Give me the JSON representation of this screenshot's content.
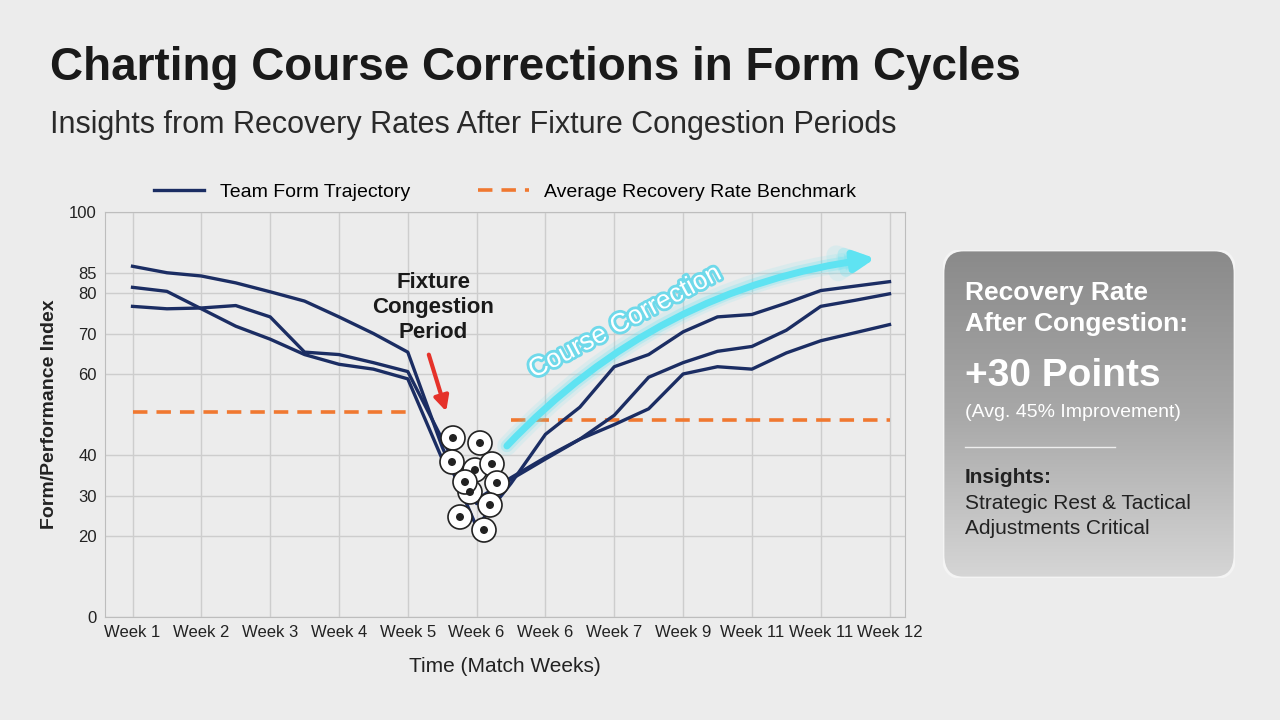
{
  "chart_data": {
    "type": "line",
    "title": "Charting Course Corrections in Form Cycles",
    "subtitle": "Insights from Recovery Rates After Fixture Congestion Periods",
    "x_label": "Time (Match Weeks)",
    "y_label": "Form/Performance Index",
    "categories": [
      "Week 1",
      null,
      "Week 2",
      null,
      "Week 3",
      null,
      "Week 4",
      null,
      "Week 5",
      null,
      "Week 6",
      null,
      "Week 6",
      null,
      "Week 7",
      null,
      "Week 9",
      null,
      "Week 11",
      null,
      "Week 11",
      null,
      "Week 12"
    ],
    "series": [
      {
        "name": "Team Form Trajectory",
        "color": "#1b2d63",
        "line_style": "solid",
        "values": [
          86.6,
          85.0,
          84.2,
          82.5,
          80.3,
          78.0,
          74.1,
          70.0,
          65.4,
          42.0,
          22.2,
          33.0,
          45.1,
          51.8,
          61.8,
          64.8,
          70.4,
          74.1,
          74.7,
          77.5,
          80.6,
          81.7,
          82.8
        ]
      },
      {
        "color": "#1b2d63",
        "line_style": "solid",
        "values": [
          81.4,
          80.4,
          76.1,
          71.8,
          68.6,
          64.8,
          62.4,
          61.2,
          58.8,
          39.0,
          29.0,
          34.4,
          39.4,
          43.9,
          49.8,
          59.2,
          62.8,
          65.6,
          66.8,
          70.8,
          76.7,
          78.2,
          79.8
        ]
      },
      {
        "color": "#1b2d63",
        "line_style": "solid",
        "values": [
          76.7,
          76.1,
          76.3,
          76.9,
          74.1,
          65.4,
          64.8,
          62.8,
          60.6,
          43.9,
          28.0,
          34.0,
          39.0,
          43.9,
          47.5,
          51.4,
          60.0,
          61.8,
          61.2,
          65.2,
          68.2,
          70.2,
          72.2
        ]
      },
      {
        "name": "Average Recovery Rate Benchmark",
        "color": "#f07830",
        "line_style": "dashed",
        "values": [
          50.6,
          50.6,
          50.6,
          50.6,
          50.6,
          50.6,
          50.6,
          50.6,
          50.6,
          null,
          null,
          48.6,
          48.6,
          48.6,
          48.6,
          48.6,
          48.6,
          48.6,
          48.6,
          48.6,
          48.6,
          48.6,
          48.6
        ]
      }
    ],
    "ylim": [
      0,
      100
    ],
    "yticks": [
      0,
      20,
      30,
      40,
      60,
      70,
      80,
      85,
      100
    ],
    "grid": true,
    "legend": "upper center",
    "annotations": [
      {
        "text": "Fixture\nCongestion\nPeriod"
      },
      {
        "text": "Course Correction"
      }
    ],
    "callout": {
      "heading": "Recovery Rate\nAfter Congestion:",
      "value": "+30 Points",
      "note": "(Avg. 45% Improvement)",
      "insights_title": "Insights:",
      "insights": "Strategic Rest & Tactical\nAdjustments Critical"
    }
  }
}
